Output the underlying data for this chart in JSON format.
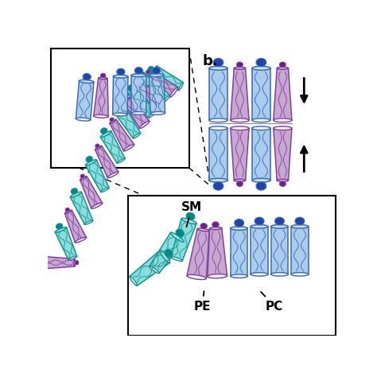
{
  "bg_color": "#ffffff",
  "title_b": "b.",
  "label_SM": "SM",
  "label_PE": "PE",
  "label_PC": "PC",
  "color_PC_fill": "#aaccee",
  "color_PC_fill2": "#c8dff5",
  "color_PC_stroke": "#3a6ab0",
  "color_PE_fill": "#c8a8d0",
  "color_PE_fill2": "#dcc0e0",
  "color_PE_stroke": "#8040a0",
  "color_SM_fill": "#88dddd",
  "color_SM_fill2": "#aaeaea",
  "color_SM_stroke": "#1a9090",
  "color_head_PC": "#2244aa",
  "color_head_PE": "#6a2080",
  "color_head_SM": "#008888",
  "arrow_color": "#111111",
  "box_stroke": "#111111",
  "midline_color": "#888888"
}
